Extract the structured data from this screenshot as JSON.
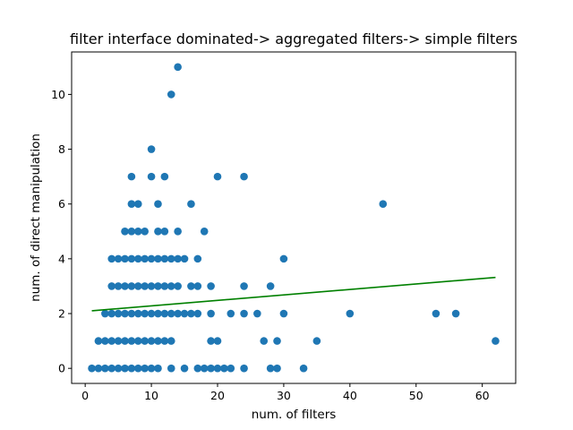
{
  "chart_data": {
    "type": "scatter",
    "title": "filter interface dominated-> aggregated filters-> simple filters",
    "xlabel": "num. of filters",
    "ylabel": "num. of direct manipulation",
    "xlim": [
      -2.05,
      65.05
    ],
    "ylim": [
      -0.55,
      11.55
    ],
    "xticks": [
      0,
      10,
      20,
      30,
      40,
      50,
      60
    ],
    "yticks": [
      0,
      2,
      4,
      6,
      8,
      10
    ],
    "grid": false,
    "point_color": "#1f77b4",
    "trend_color": "#008000",
    "trend_line": {
      "x": [
        1,
        62
      ],
      "y": [
        2.1,
        3.32
      ]
    },
    "points": [
      [
        1,
        0
      ],
      [
        2,
        0
      ],
      [
        3,
        0
      ],
      [
        4,
        0
      ],
      [
        5,
        0
      ],
      [
        6,
        0
      ],
      [
        7,
        0
      ],
      [
        8,
        0
      ],
      [
        9,
        0
      ],
      [
        10,
        0
      ],
      [
        11,
        0
      ],
      [
        13,
        0
      ],
      [
        15,
        0
      ],
      [
        17,
        0
      ],
      [
        18,
        0
      ],
      [
        19,
        0
      ],
      [
        20,
        0
      ],
      [
        21,
        0
      ],
      [
        22,
        0
      ],
      [
        24,
        0
      ],
      [
        28,
        0
      ],
      [
        29,
        0
      ],
      [
        33,
        0
      ],
      [
        2,
        1
      ],
      [
        3,
        1
      ],
      [
        4,
        1
      ],
      [
        5,
        1
      ],
      [
        6,
        1
      ],
      [
        7,
        1
      ],
      [
        8,
        1
      ],
      [
        9,
        1
      ],
      [
        10,
        1
      ],
      [
        11,
        1
      ],
      [
        12,
        1
      ],
      [
        13,
        1
      ],
      [
        19,
        1
      ],
      [
        20,
        1
      ],
      [
        27,
        1
      ],
      [
        29,
        1
      ],
      [
        35,
        1
      ],
      [
        62,
        1
      ],
      [
        3,
        2
      ],
      [
        4,
        2
      ],
      [
        5,
        2
      ],
      [
        6,
        2
      ],
      [
        7,
        2
      ],
      [
        8,
        2
      ],
      [
        9,
        2
      ],
      [
        10,
        2
      ],
      [
        11,
        2
      ],
      [
        12,
        2
      ],
      [
        13,
        2
      ],
      [
        14,
        2
      ],
      [
        15,
        2
      ],
      [
        16,
        2
      ],
      [
        17,
        2
      ],
      [
        19,
        2
      ],
      [
        22,
        2
      ],
      [
        24,
        2
      ],
      [
        26,
        2
      ],
      [
        30,
        2
      ],
      [
        40,
        2
      ],
      [
        53,
        2
      ],
      [
        56,
        2
      ],
      [
        4,
        3
      ],
      [
        5,
        3
      ],
      [
        6,
        3
      ],
      [
        7,
        3
      ],
      [
        8,
        3
      ],
      [
        9,
        3
      ],
      [
        10,
        3
      ],
      [
        11,
        3
      ],
      [
        12,
        3
      ],
      [
        13,
        3
      ],
      [
        14,
        3
      ],
      [
        16,
        3
      ],
      [
        17,
        3
      ],
      [
        19,
        3
      ],
      [
        24,
        3
      ],
      [
        28,
        3
      ],
      [
        4,
        4
      ],
      [
        5,
        4
      ],
      [
        6,
        4
      ],
      [
        7,
        4
      ],
      [
        8,
        4
      ],
      [
        9,
        4
      ],
      [
        10,
        4
      ],
      [
        11,
        4
      ],
      [
        12,
        4
      ],
      [
        13,
        4
      ],
      [
        14,
        4
      ],
      [
        15,
        4
      ],
      [
        17,
        4
      ],
      [
        30,
        4
      ],
      [
        6,
        5
      ],
      [
        7,
        5
      ],
      [
        8,
        5
      ],
      [
        9,
        5
      ],
      [
        11,
        5
      ],
      [
        12,
        5
      ],
      [
        14,
        5
      ],
      [
        18,
        5
      ],
      [
        7,
        6
      ],
      [
        8,
        6
      ],
      [
        11,
        6
      ],
      [
        16,
        6
      ],
      [
        45,
        6
      ],
      [
        7,
        7
      ],
      [
        10,
        7
      ],
      [
        12,
        7
      ],
      [
        20,
        7
      ],
      [
        24,
        7
      ],
      [
        10,
        8
      ],
      [
        13,
        10
      ],
      [
        14,
        11
      ]
    ]
  }
}
